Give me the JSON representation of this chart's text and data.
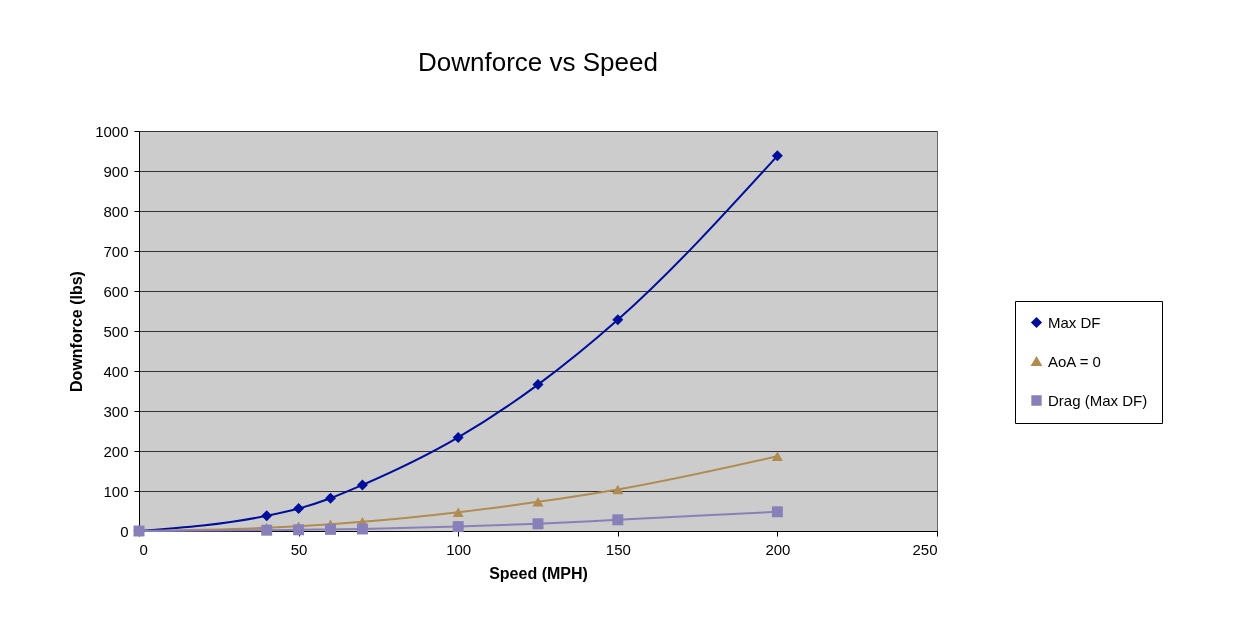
{
  "chart_data": {
    "type": "line",
    "title": "Downforce vs Speed",
    "xlabel": "Speed (MPH)",
    "ylabel": "Downforce (lbs)",
    "x": [
      0,
      40,
      50,
      60,
      70,
      100,
      125,
      150,
      200
    ],
    "series": [
      {
        "name": "Max DF",
        "color": "#000f9a",
        "marker": "diamond",
        "values": [
          0,
          38,
          56,
          82,
          115,
          234,
          366,
          528,
          938
        ]
      },
      {
        "name": "AoA = 0",
        "color": "#b08c50",
        "marker": "triangle",
        "values": [
          0,
          8,
          12,
          17,
          23,
          47,
          73,
          104,
          187
        ]
      },
      {
        "name": "Drag (Max DF)",
        "color": "#8880b8",
        "marker": "square",
        "values": [
          0,
          2,
          3,
          4,
          5,
          11,
          18,
          28,
          48
        ]
      }
    ],
    "xlim": [
      0,
      250
    ],
    "xticks": [
      0,
      50,
      100,
      150,
      200,
      250
    ],
    "ylim": [
      0,
      1000
    ],
    "yticks": [
      0,
      100,
      200,
      300,
      400,
      500,
      600,
      700,
      800,
      900,
      1000
    ],
    "grid": "y",
    "legend": "right"
  }
}
